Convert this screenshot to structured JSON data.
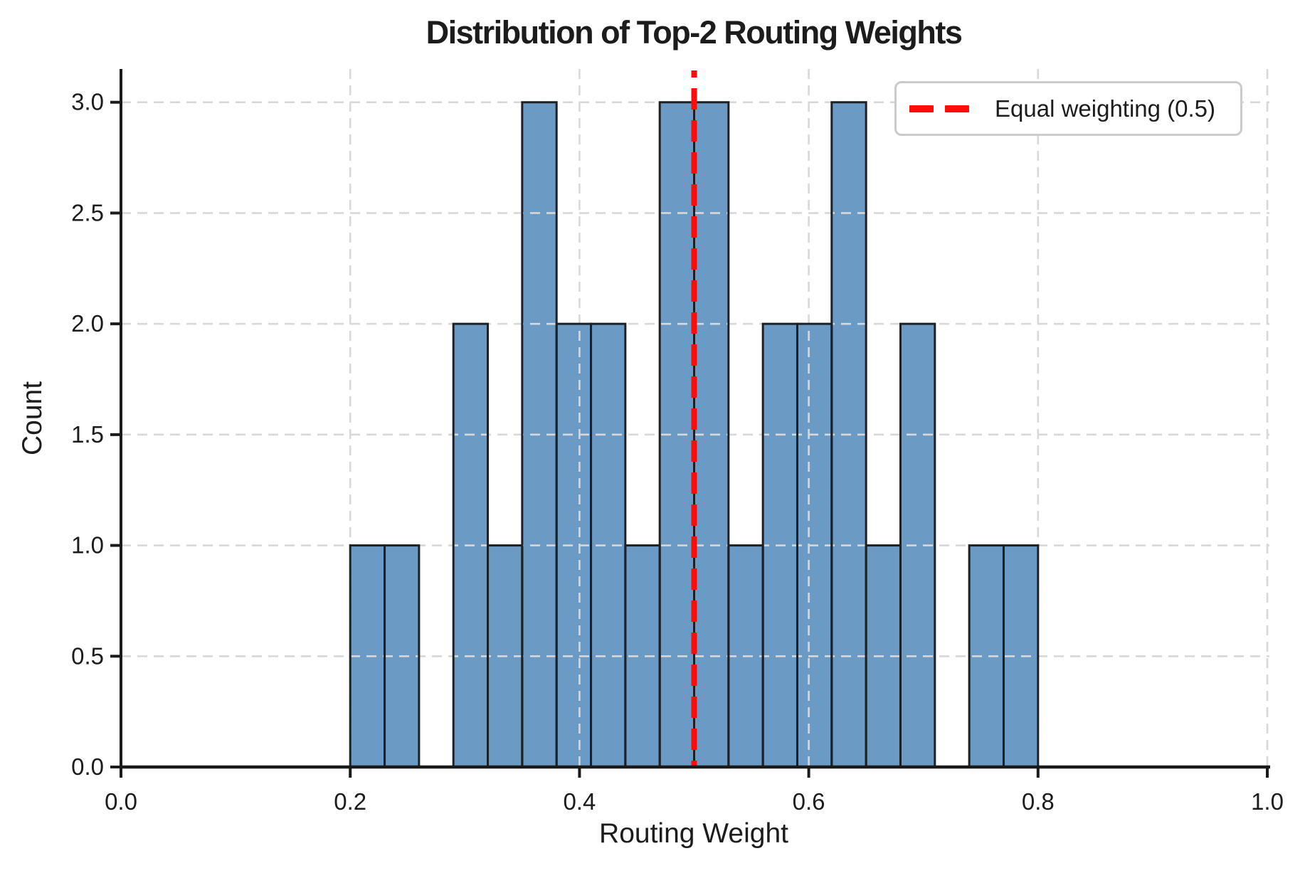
{
  "title": "Distribution of Top-2 Routing Weights",
  "legend": {
    "label": "Equal weighting (0.5)"
  },
  "colors": {
    "bar_fill": "#6b9ac4",
    "bar_edge": "#1d2126",
    "grid": "#d8d8d8",
    "axis": "#1a1a1a",
    "text": "#1c1c1c",
    "red_line": "#fb0d0d",
    "legend_border": "#cbcbcb",
    "background": "#ffffff"
  },
  "chart_data": {
    "type": "bar",
    "subtype": "histogram",
    "title": "Distribution of Top-2 Routing Weights",
    "xlabel": "Routing Weight",
    "ylabel": "Count",
    "xlim": [
      0.0,
      1.0
    ],
    "ylim": [
      0.0,
      3.15
    ],
    "grid": true,
    "grid_style": "dashed",
    "legend_position": "upper right",
    "bin_edges": [
      0.2,
      0.23,
      0.26,
      0.29,
      0.32,
      0.35,
      0.38,
      0.41,
      0.44,
      0.47,
      0.5,
      0.53,
      0.56,
      0.59,
      0.62,
      0.65,
      0.68,
      0.71,
      0.74,
      0.77,
      0.8
    ],
    "counts": [
      1,
      1,
      0,
      2,
      1,
      3,
      2,
      2,
      1,
      3,
      3,
      1,
      2,
      2,
      3,
      1,
      2,
      0,
      1,
      1
    ],
    "xticks": {
      "values": [
        0.0,
        0.2,
        0.4,
        0.6,
        0.8,
        1.0
      ],
      "labels": [
        "0.0",
        "0.2",
        "0.4",
        "0.6",
        "0.8",
        "1.0"
      ]
    },
    "yticks": {
      "values": [
        0.0,
        0.5,
        1.0,
        1.5,
        2.0,
        2.5,
        3.0
      ],
      "labels": [
        "0.0",
        "0.5",
        "1.0",
        "1.5",
        "2.0",
        "2.5",
        "3.0"
      ]
    },
    "vline": {
      "x": 0.5,
      "style": "dashed",
      "label": "Equal weighting (0.5)"
    }
  }
}
